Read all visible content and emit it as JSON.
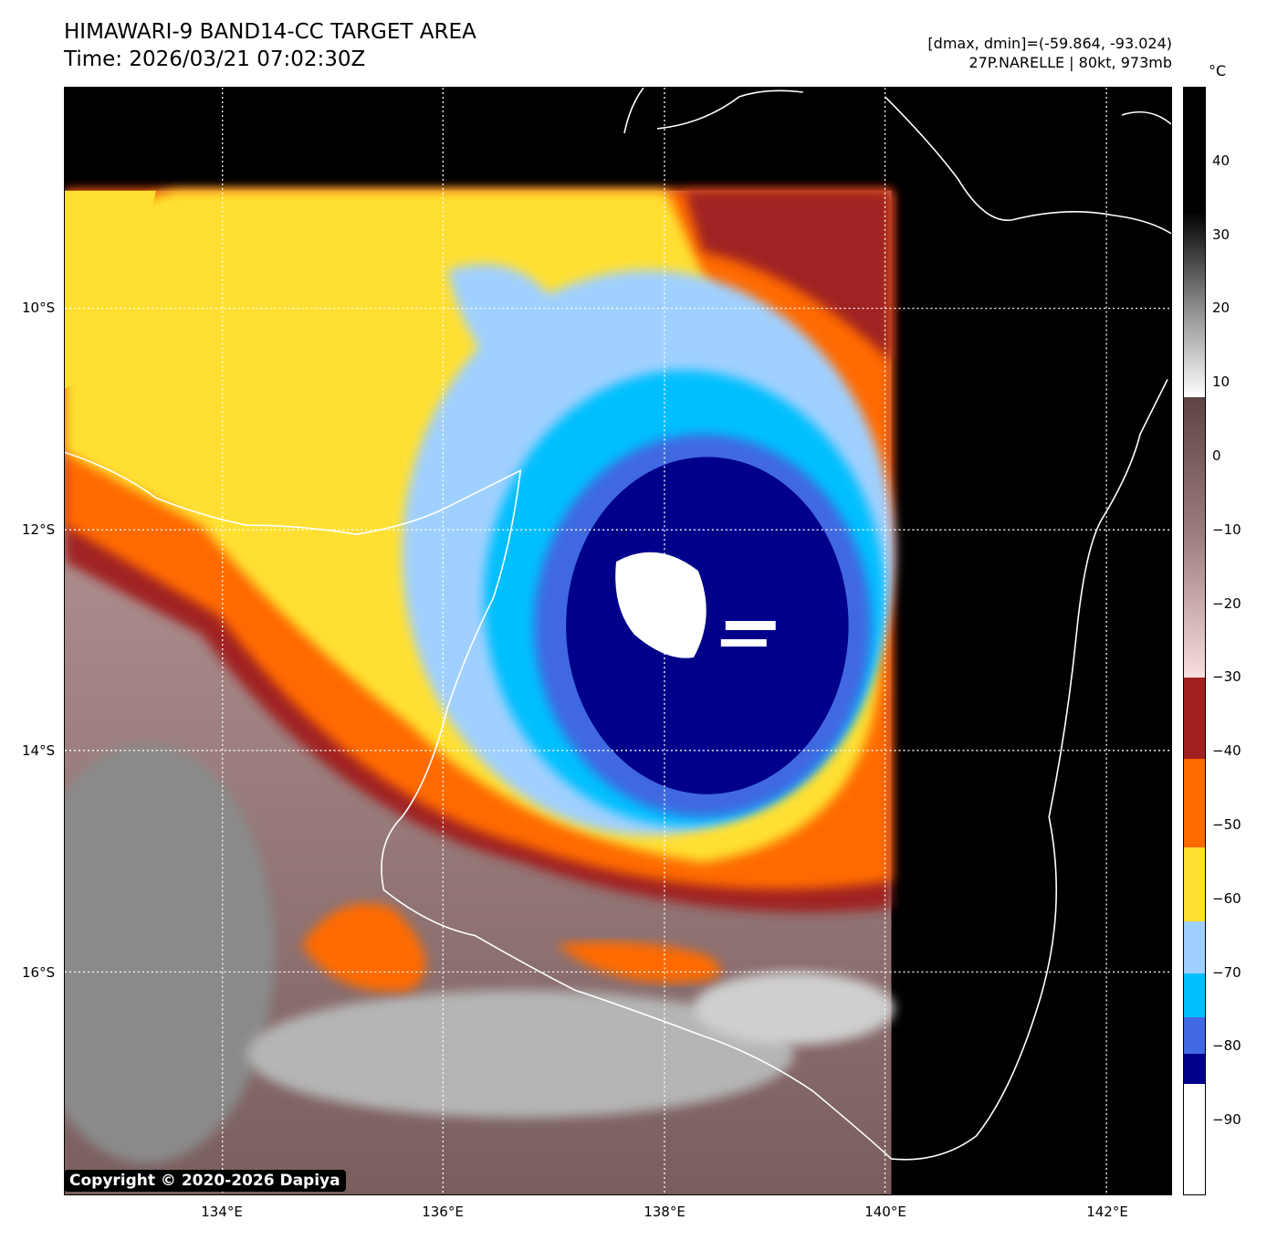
{
  "header": {
    "title": "HIMAWARI-9 BAND14-CC TARGET AREA",
    "time": "Time: 2026/03/21 07:02:30Z",
    "dminmax": "[dmax, dmin]=(-59.864, -93.024)",
    "storm": "27P.NARELLE | 80kt, 973mb"
  },
  "colorbar": {
    "unit": "°C",
    "range": [
      -100,
      50
    ],
    "ticks": [
      "40",
      "30",
      "20",
      "10",
      "0",
      "−10",
      "−20",
      "−30",
      "−40",
      "−50",
      "−60",
      "−70",
      "−80",
      "−90"
    ],
    "bands": [
      {
        "from": -100,
        "to": -85,
        "color": "#ffffff"
      },
      {
        "from": -85,
        "to": -81,
        "color": "#00008b"
      },
      {
        "from": -81,
        "to": -76,
        "color": "#4169e1"
      },
      {
        "from": -76,
        "to": -70,
        "color": "#00bfff"
      },
      {
        "from": -70,
        "to": -63,
        "color": "#a0d0ff"
      },
      {
        "from": -63,
        "to": -53,
        "color": "#ffe030"
      },
      {
        "from": -53,
        "to": -41,
        "color": "#ff6a00"
      },
      {
        "from": -41,
        "to": -30,
        "color": "#a02020"
      },
      {
        "from": -30,
        "to": 8,
        "color": "gradient-pink-brown"
      },
      {
        "from": 8,
        "to": 50,
        "color": "gradient-white-black"
      }
    ]
  },
  "axes": {
    "lon_ticks": [
      "134°E",
      "136°E",
      "138°E",
      "140°E",
      "142°E"
    ],
    "lat_ticks": [
      "10°S",
      "12°S",
      "14°S",
      "16°S"
    ]
  },
  "copyright": "Copyright © 2020-2026 Dapiya"
}
